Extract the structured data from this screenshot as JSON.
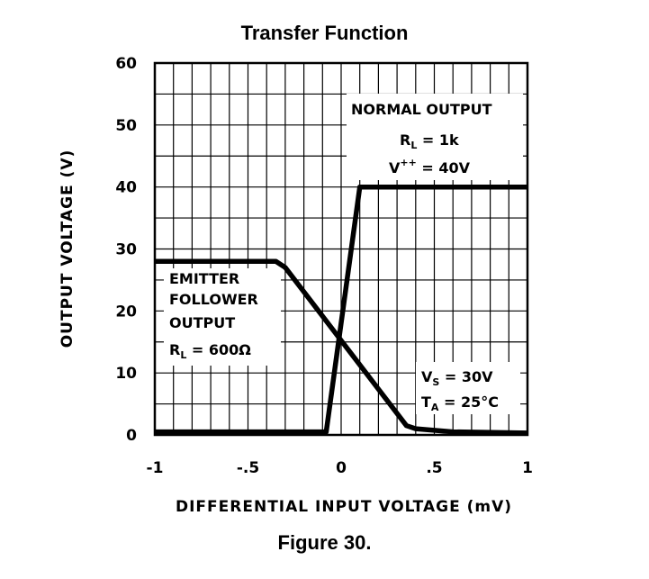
{
  "chart_data": {
    "type": "line",
    "title": "Transfer Function",
    "caption": "Figure 30.",
    "xlabel": "DIFFERENTIAL INPUT VOLTAGE (mV)",
    "ylabel": "OUTPUT VOLTAGE (V)",
    "xlim": [
      -1,
      1
    ],
    "ylim": [
      0,
      60
    ],
    "x_ticks": [
      -1,
      -0.5,
      0,
      0.5,
      1
    ],
    "x_tick_labels": [
      "-1",
      "-.5",
      "0",
      ".5",
      "1"
    ],
    "y_ticks": [
      0,
      10,
      20,
      30,
      40,
      50,
      60
    ],
    "y_tick_labels": [
      "0",
      "10",
      "20",
      "30",
      "40",
      "50",
      "60"
    ],
    "grid": true,
    "grid_minor_x": 0.1,
    "grid_minor_y": 5,
    "series": [
      {
        "name": "NORMAL OUTPUT",
        "x": [
          -1,
          -0.08,
          0.1,
          1
        ],
        "y": [
          0.5,
          0.5,
          40,
          40
        ]
      },
      {
        "name": "EMITTER FOLLOWER OUTPUT",
        "x": [
          -1,
          -0.35,
          -0.3,
          0.35,
          0.4,
          0.6,
          1
        ],
        "y": [
          28,
          28,
          27,
          1.5,
          1,
          0.5,
          0.3
        ]
      }
    ],
    "annotations": {
      "normal": {
        "line1": "NORMAL OUTPUT",
        "rl_main": "R",
        "rl_sub": "L",
        "rl_val": " = 1k",
        "v_main": "V",
        "v_sup": "++",
        "v_val": " = 40V"
      },
      "emitter": {
        "line1": "EMITTER",
        "line2": "FOLLOWER",
        "line3": "OUTPUT",
        "rl_main": "R",
        "rl_sub": "L",
        "rl_val": " = 600Ω"
      },
      "conditions": {
        "vs_main": "V",
        "vs_sub": "S",
        "vs_val": " = 30V",
        "ta_main": "T",
        "ta_sub": "A",
        "ta_val": " = 25°C"
      }
    }
  }
}
